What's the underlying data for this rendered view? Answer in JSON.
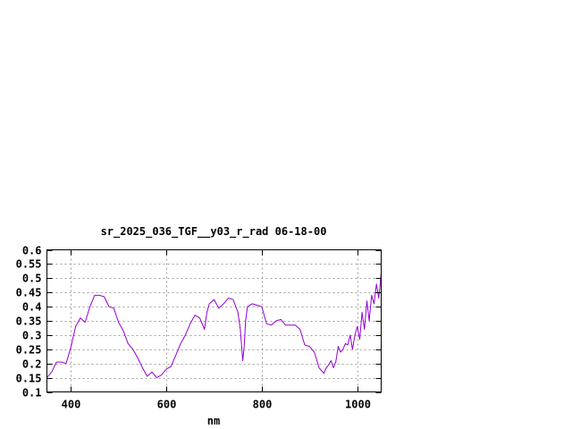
{
  "chart_data": {
    "type": "line",
    "title": "sr_2025_036_TGF__y03_r_rad 06-18-00",
    "xlabel": "nm",
    "ylabel": "",
    "xlim": [
      350,
      1050
    ],
    "ylim": [
      0.1,
      0.6
    ],
    "xticks": [
      400,
      600,
      800,
      1000
    ],
    "xtick_labels": [
      "400",
      "600",
      "800",
      "1000"
    ],
    "yticks": [
      0.1,
      0.15,
      0.2,
      0.25,
      0.3,
      0.35,
      0.4,
      0.45,
      0.5,
      0.55,
      0.6
    ],
    "ytick_labels": [
      "0.1",
      "0.15",
      "0.2",
      "0.25",
      "0.3",
      "0.35",
      "0.4",
      "0.45",
      "0.5",
      "0.55",
      "0.6"
    ],
    "grid": true,
    "legend": false,
    "series": [
      {
        "color": "#9400d3",
        "x": [
          350,
          360,
          370,
          380,
          390,
          400,
          410,
          420,
          430,
          440,
          450,
          460,
          470,
          480,
          490,
          500,
          510,
          520,
          530,
          540,
          550,
          560,
          570,
          580,
          590,
          600,
          610,
          620,
          630,
          640,
          650,
          660,
          670,
          680,
          685,
          690,
          700,
          710,
          720,
          730,
          740,
          750,
          755,
          760,
          763,
          766,
          770,
          780,
          790,
          800,
          810,
          820,
          830,
          840,
          850,
          860,
          870,
          880,
          890,
          900,
          910,
          920,
          930,
          935,
          940,
          945,
          950,
          955,
          960,
          965,
          970,
          975,
          980,
          985,
          990,
          995,
          1000,
          1005,
          1010,
          1015,
          1020,
          1025,
          1030,
          1035,
          1040,
          1045,
          1050
        ],
        "y": [
          0.15,
          0.17,
          0.205,
          0.205,
          0.2,
          0.255,
          0.33,
          0.36,
          0.345,
          0.4,
          0.44,
          0.44,
          0.435,
          0.4,
          0.395,
          0.345,
          0.315,
          0.27,
          0.25,
          0.22,
          0.185,
          0.155,
          0.17,
          0.15,
          0.16,
          0.18,
          0.19,
          0.23,
          0.27,
          0.3,
          0.34,
          0.37,
          0.36,
          0.32,
          0.38,
          0.41,
          0.425,
          0.395,
          0.41,
          0.43,
          0.425,
          0.38,
          0.32,
          0.21,
          0.26,
          0.35,
          0.4,
          0.41,
          0.405,
          0.4,
          0.34,
          0.335,
          0.35,
          0.355,
          0.335,
          0.335,
          0.335,
          0.32,
          0.265,
          0.26,
          0.24,
          0.185,
          0.165,
          0.185,
          0.195,
          0.21,
          0.185,
          0.205,
          0.26,
          0.24,
          0.25,
          0.27,
          0.265,
          0.3,
          0.25,
          0.3,
          0.33,
          0.285,
          0.38,
          0.32,
          0.42,
          0.35,
          0.44,
          0.41,
          0.48,
          0.43,
          0.52
        ]
      }
    ]
  }
}
